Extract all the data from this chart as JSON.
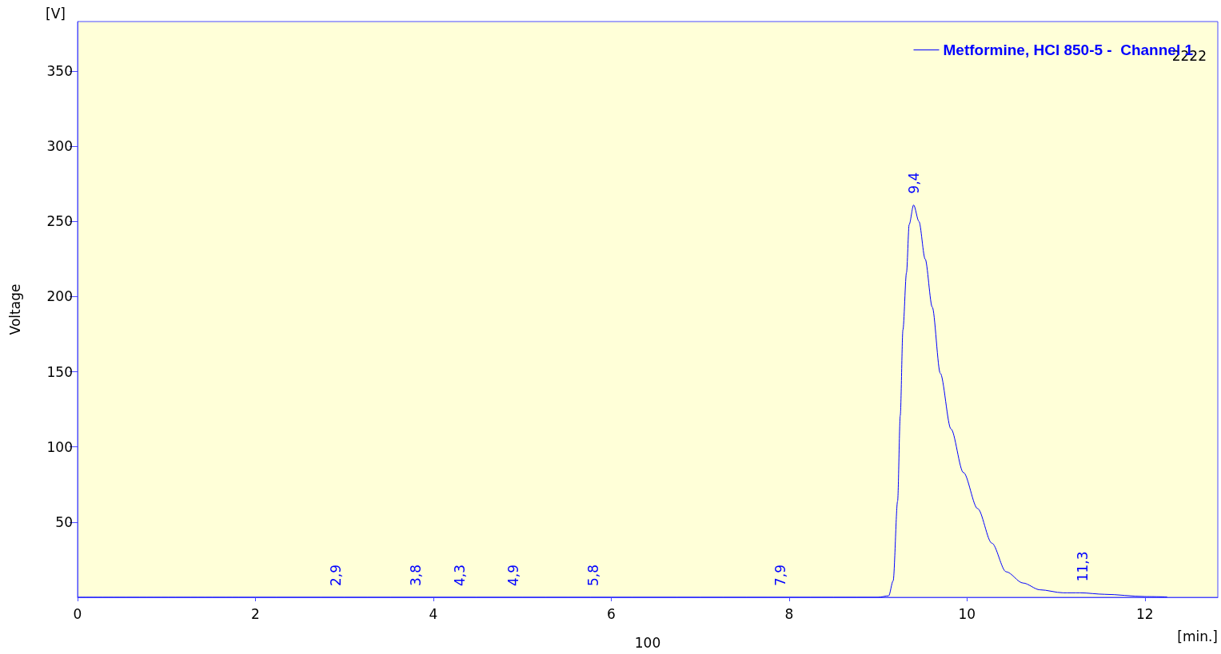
{
  "chart_data": {
    "type": "line",
    "xlabel": "[min.]",
    "ylabel": "Voltage",
    "series": [
      {
        "name": "Metformine, HCl 850-5 -  Channel 1",
        "color": "#0000ff",
        "x": [
          0,
          2,
          4,
          6,
          8,
          9.0,
          9.12,
          9.17,
          9.22,
          9.25,
          9.28,
          9.32,
          9.35,
          9.4,
          9.46,
          9.53,
          9.61,
          9.7,
          9.82,
          9.96,
          10.12,
          10.28,
          10.44,
          10.63,
          10.82,
          11.08,
          11.27,
          11.55,
          12.0,
          12.25
        ],
        "values": [
          0,
          0,
          0,
          0,
          0,
          0,
          1,
          11,
          64,
          121,
          178,
          216,
          248,
          261,
          250,
          225,
          193,
          149,
          112,
          83,
          59,
          36,
          17,
          9.5,
          5,
          3,
          3,
          2,
          0.5,
          0.3
        ]
      }
    ],
    "xlim": [
      0,
      12.82
    ],
    "ylim": [
      0,
      383
    ],
    "xticks": [
      0,
      2,
      4,
      6,
      8,
      10,
      12
    ],
    "yticks": [
      50,
      100,
      150,
      200,
      250,
      300,
      350
    ],
    "grid": false,
    "legend": "top right",
    "marker": "none",
    "line_style": "solid",
    "annotations": [
      "[V]",
      "100",
      "2222",
      {
        "text": "2,9",
        "x": 2.9,
        "y": 0
      },
      {
        "text": "3,8",
        "x": 3.8,
        "y": 0
      },
      {
        "text": "4,3",
        "x": 4.3,
        "y": 0
      },
      {
        "text": "4,9",
        "x": 4.9,
        "y": 0
      },
      {
        "text": "5,8",
        "x": 5.8,
        "y": 0
      },
      {
        "text": "7,9",
        "x": 7.9,
        "y": 0
      },
      {
        "text": "9,4",
        "x": 9.4,
        "y": 261
      },
      {
        "text": "11,3",
        "x": 11.3,
        "y": 3
      }
    ]
  }
}
